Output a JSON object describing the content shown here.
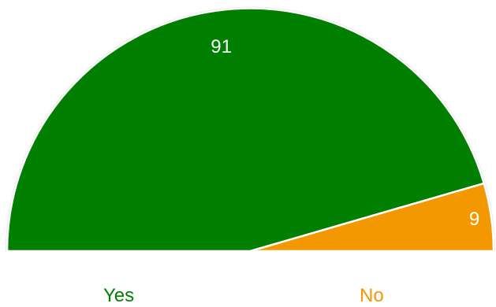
{
  "chart_data": {
    "type": "pie",
    "subtype": "semicircle",
    "categories": [
      "Yes",
      "No"
    ],
    "values": [
      91,
      9
    ],
    "data_labels": [
      "91",
      "9"
    ],
    "colors": [
      "#007F00",
      "#F39800"
    ],
    "slice_border_color": "#FFFFFF",
    "legend": {
      "placement": "bottom",
      "entries": [
        {
          "label": "Yes",
          "color": "#007F00"
        },
        {
          "label": "No",
          "color": "#F39800"
        }
      ]
    },
    "title": "",
    "xlabel": "",
    "ylabel": "",
    "grid": false
  }
}
